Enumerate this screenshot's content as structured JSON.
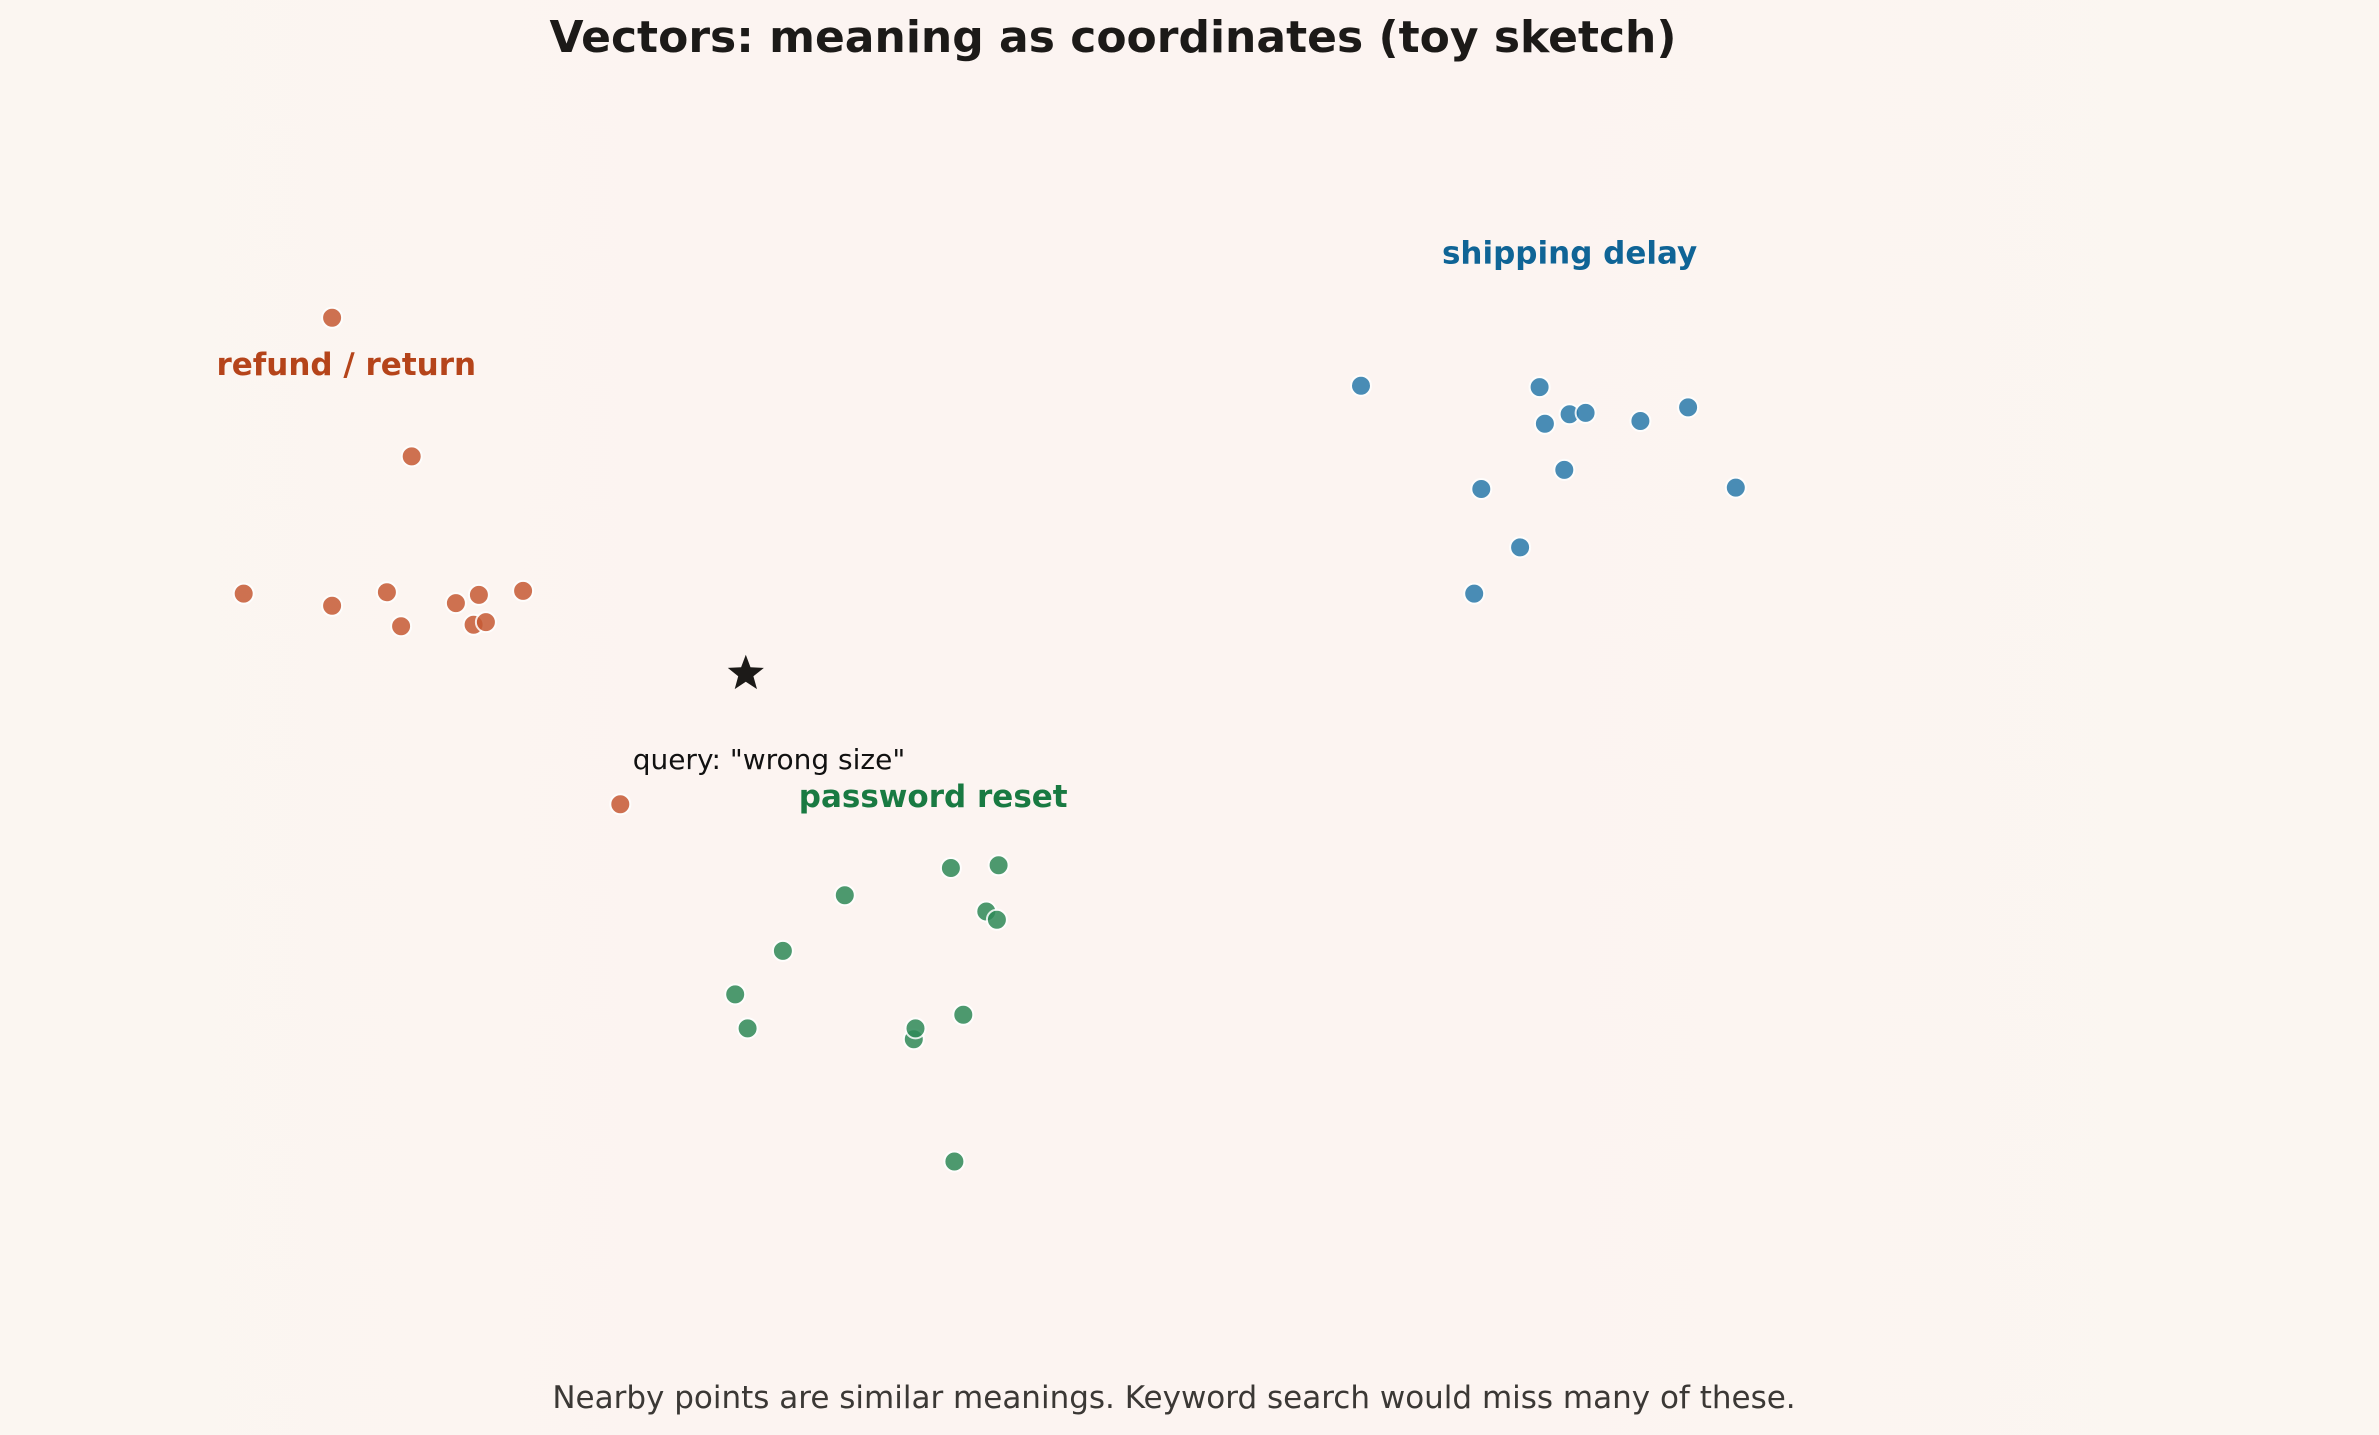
{
  "chart_data": {
    "type": "scatter",
    "title": "Vectors: meaning as coordinates (toy sketch)",
    "xlabel": "",
    "ylabel": "",
    "axes_visible": false,
    "grid": false,
    "xlim": [
      -4.6,
      6.6
    ],
    "ylim": [
      -4.2,
      5.0
    ],
    "series": [
      {
        "id": "refund",
        "name": "refund / return",
        "color": "#c65a34",
        "label_color": "#b5441a",
        "label_position": [
          -3.32,
          2.83
        ],
        "points": [
          [
            -3.4,
            3.25
          ],
          [
            -2.95,
            2.23
          ],
          [
            -3.9,
            1.22
          ],
          [
            -3.4,
            1.13
          ],
          [
            -3.09,
            1.23
          ],
          [
            -3.01,
            0.98
          ],
          [
            -2.7,
            1.15
          ],
          [
            -2.6,
            0.99
          ],
          [
            -2.57,
            1.21
          ],
          [
            -2.53,
            1.01
          ],
          [
            -2.32,
            1.24
          ],
          [
            -1.77,
            -0.33
          ]
        ]
      },
      {
        "id": "shipping",
        "name": "shipping delay",
        "color": "#2a7aab",
        "label_color": "#0f6496",
        "label_position": [
          3.6,
          3.65
        ],
        "points": [
          [
            2.42,
            2.75
          ],
          [
            3.1,
            1.99
          ],
          [
            3.06,
            1.22
          ],
          [
            3.32,
            1.56
          ],
          [
            3.43,
            2.74
          ],
          [
            3.46,
            2.47
          ],
          [
            3.57,
            2.13
          ],
          [
            3.6,
            2.54
          ],
          [
            3.69,
            2.55
          ],
          [
            4.0,
            2.49
          ],
          [
            4.27,
            2.59
          ],
          [
            4.54,
            2.0
          ]
        ]
      },
      {
        "id": "password",
        "name": "password reset",
        "color": "#2f8a58",
        "label_color": "#197a42",
        "label_position": [
          0.0,
          -0.35
        ],
        "points": [
          [
            -1.12,
            -1.73
          ],
          [
            -1.05,
            -1.98
          ],
          [
            -0.85,
            -1.41
          ],
          [
            -0.5,
            -1.0
          ],
          [
            -0.11,
            -2.06
          ],
          [
            -0.1,
            -1.98
          ],
          [
            0.1,
            -0.8
          ],
          [
            0.12,
            -2.96
          ],
          [
            0.17,
            -1.88
          ],
          [
            0.3,
            -1.12
          ],
          [
            0.36,
            -1.18
          ],
          [
            0.37,
            -0.78
          ]
        ]
      }
    ],
    "query": {
      "label": "query: \"wrong size\"",
      "position": [
        -1.06,
        0.63
      ],
      "marker": "star",
      "color": "#1c1a18",
      "label_position": [
        -1.7,
        -0.07
      ]
    },
    "footnote": "Nearby points are similar meanings. Keyword search would miss many of these."
  }
}
